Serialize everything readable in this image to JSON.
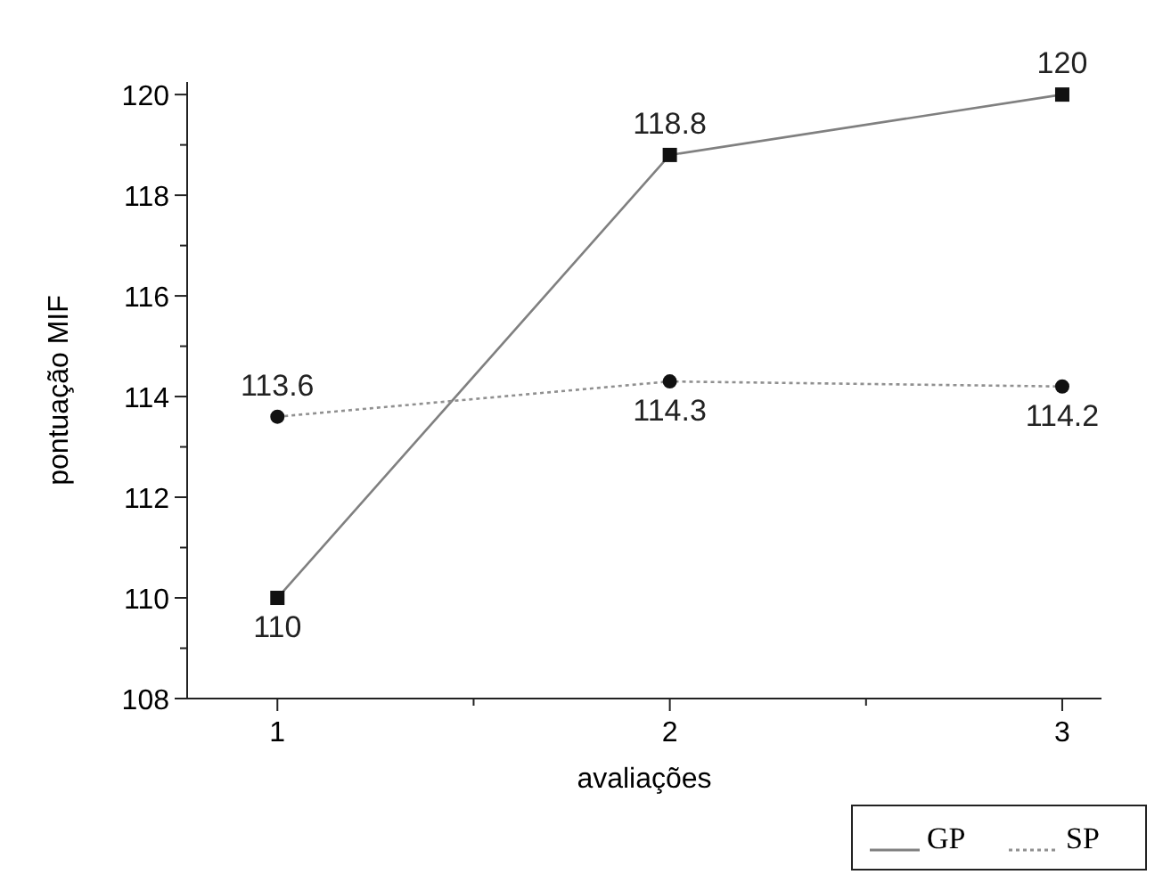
{
  "chart_data": {
    "type": "line",
    "xlabel": "avaliações",
    "ylabel": "pontuação MIF",
    "x": [
      1,
      2,
      3
    ],
    "series": [
      {
        "name": "GP",
        "color": "#808080",
        "values": [
          110,
          118.8,
          120
        ],
        "marker": "square",
        "line_style": "solid"
      },
      {
        "name": "SP",
        "color": "#909090",
        "values": [
          113.6,
          114.3,
          114.2
        ],
        "marker": "circle",
        "line_style": "dotted"
      }
    ],
    "xlim": [
      0.77,
      3.1
    ],
    "xticks": [
      1,
      {
        "value": 1.5,
        "label": null
      },
      2,
      {
        "value": 2.5,
        "label": null
      },
      3
    ],
    "ylim": [
      108,
      120.25
    ],
    "yticks": [
      108,
      {
        "value": 109,
        "label": null
      },
      110,
      {
        "value": 111,
        "label": null
      },
      112,
      {
        "value": 113,
        "label": null
      },
      114,
      {
        "value": 115,
        "label": null
      },
      116,
      {
        "value": 117,
        "label": null
      },
      118,
      {
        "value": 119,
        "label": null
      },
      120
    ],
    "data_labels": true,
    "legend": "bottom right"
  }
}
